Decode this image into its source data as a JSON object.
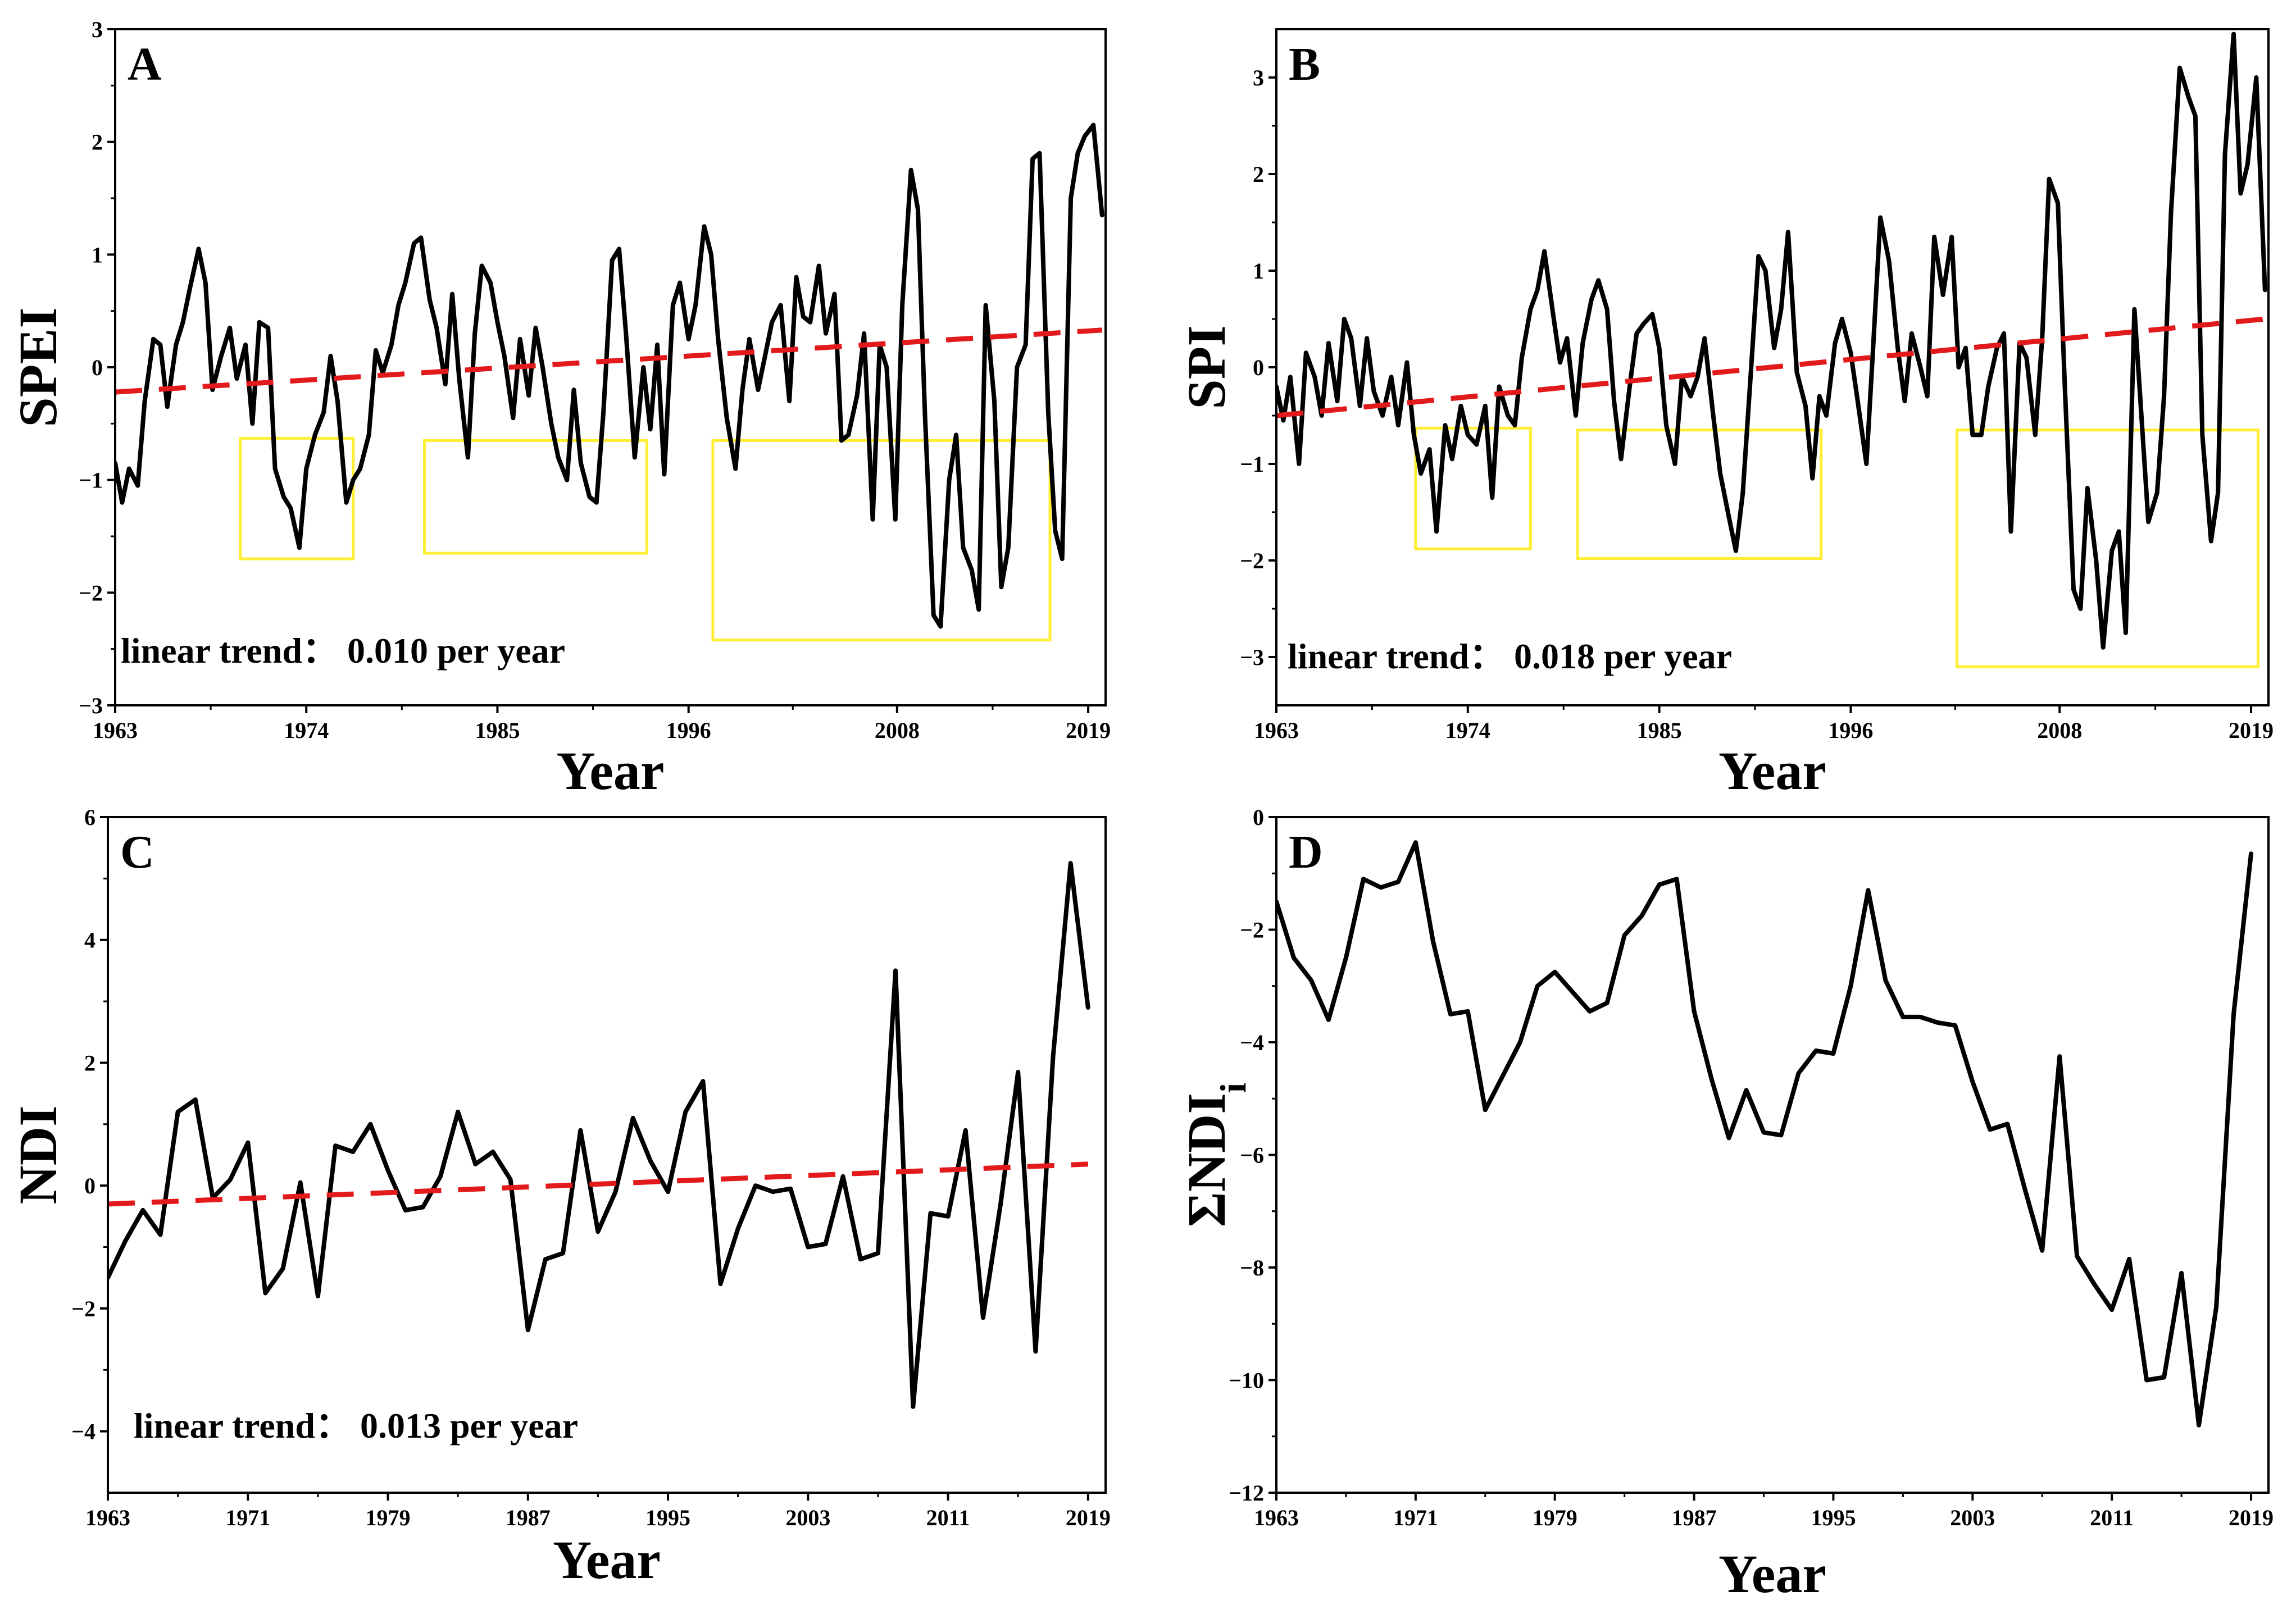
{
  "chart_data": [
    {
      "panel": "A",
      "type": "line",
      "ylabel": "SPEI",
      "xlabel": "Year",
      "ylim": [
        -3,
        3
      ],
      "yticks": [
        -3,
        -2,
        -1,
        0,
        1,
        2,
        3
      ],
      "xlim": [
        1963,
        2020
      ],
      "xticks": [
        1963,
        1974,
        1985,
        1996,
        2008,
        2019
      ],
      "annotation": "linear trend： 0.010 per year",
      "trend": {
        "color": "#e31a1c",
        "x": [
          1963,
          2019.8
        ],
        "y": [
          -0.22,
          0.33
        ]
      },
      "series": [
        {
          "name": "SPEI",
          "color": "#000000",
          "x": [
            1963.0,
            1963.4,
            1963.8,
            1964.3,
            1964.7,
            1965.2,
            1965.6,
            1966.0,
            1966.5,
            1966.9,
            1967.3,
            1967.8,
            1968.2,
            1968.6,
            1969.1,
            1969.6,
            1970.0,
            1970.5,
            1970.9,
            1971.3,
            1971.8,
            1972.2,
            1972.7,
            1973.1,
            1973.6,
            1974.0,
            1974.5,
            1975.0,
            1975.4,
            1975.8,
            1976.3,
            1976.7,
            1977.1,
            1977.6,
            1978.0,
            1978.4,
            1978.9,
            1979.3,
            1979.7,
            1980.2,
            1980.6,
            1981.1,
            1981.5,
            1982.0,
            1982.4,
            1982.8,
            1983.3,
            1983.7,
            1984.1,
            1984.6,
            1985.0,
            1985.4,
            1985.9,
            1986.3,
            1986.8,
            1987.2,
            1987.6,
            1988.1,
            1988.5,
            1989.0,
            1989.4,
            1989.8,
            1990.3,
            1990.7,
            1991.1,
            1991.6,
            1992.0,
            1992.4,
            1992.9,
            1993.4,
            1993.8,
            1994.2,
            1994.6,
            1995.1,
            1995.5,
            1996.0,
            1996.4,
            1996.9,
            1997.3,
            1997.7,
            1998.2,
            1998.7,
            1999.1,
            1999.5,
            2000.0,
            2000.4,
            2000.8,
            2001.3,
            2001.8,
            2002.2,
            2002.6,
            2003.0,
            2003.5,
            2003.9,
            2004.4,
            2004.8,
            2005.2,
            2005.7,
            2006.1,
            2006.6,
            2007.0,
            2007.4,
            2007.9,
            2008.3,
            2008.8,
            2009.2,
            2009.6,
            2010.1,
            2010.5,
            2011.0,
            2011.4,
            2011.8,
            2012.3,
            2012.7,
            2013.1,
            2013.6,
            2014.0,
            2014.4,
            2014.9,
            2015.4,
            2015.8,
            2016.2,
            2016.7,
            2017.1,
            2017.5,
            2018.0,
            2018.4,
            2018.8,
            2019.3,
            2019.8
          ],
          "y": [
            -0.85,
            -1.2,
            -0.9,
            -1.05,
            -0.3,
            0.25,
            0.2,
            -0.35,
            0.2,
            0.4,
            0.7,
            1.05,
            0.75,
            -0.2,
            0.1,
            0.35,
            -0.1,
            0.2,
            -0.5,
            0.4,
            0.35,
            -0.9,
            -1.15,
            -1.25,
            -1.6,
            -0.9,
            -0.6,
            -0.4,
            0.1,
            -0.3,
            -1.2,
            -1.0,
            -0.9,
            -0.6,
            0.15,
            -0.05,
            0.2,
            0.55,
            0.75,
            1.1,
            1.15,
            0.6,
            0.35,
            -0.15,
            0.65,
            -0.1,
            -0.8,
            0.3,
            0.9,
            0.75,
            0.4,
            0.1,
            -0.45,
            0.25,
            -0.25,
            0.35,
            0.0,
            -0.5,
            -0.8,
            -1.0,
            -0.2,
            -0.85,
            -1.15,
            -1.2,
            -0.4,
            0.95,
            1.05,
            0.3,
            -0.8,
            0.0,
            -0.55,
            0.2,
            -0.95,
            0.55,
            0.75,
            0.25,
            0.55,
            1.25,
            1.0,
            0.25,
            -0.45,
            -0.9,
            -0.2,
            0.25,
            -0.2,
            0.1,
            0.4,
            0.55,
            -0.3,
            0.8,
            0.45,
            0.4,
            0.9,
            0.3,
            0.65,
            -0.65,
            -0.6,
            -0.25,
            0.3,
            -1.35,
            0.2,
            0.0,
            -1.35,
            0.55,
            1.75,
            1.4,
            -0.4,
            -2.2,
            -2.3,
            -1.0,
            -0.6,
            -1.6,
            -1.8,
            -2.15,
            0.55,
            -0.3,
            -1.95,
            -1.6,
            0.0,
            0.2,
            1.85,
            1.9,
            -0.4,
            -1.45,
            -1.7,
            1.5,
            1.9,
            2.05,
            2.15,
            1.35
          ]
        }
      ],
      "highlight_boxes": [
        {
          "x": [
            1970.2,
            1976.7
          ],
          "y": [
            -1.7,
            -0.63
          ]
        },
        {
          "x": [
            1980.8,
            1993.6
          ],
          "y": [
            -1.65,
            -0.65
          ]
        },
        {
          "x": [
            1997.4,
            2016.8
          ],
          "y": [
            -2.42,
            -0.65
          ]
        }
      ]
    },
    {
      "panel": "B",
      "type": "line",
      "ylabel": "SPI",
      "xlabel": "Year",
      "ylim": [
        -3.5,
        3.5
      ],
      "yticks": [
        -3,
        -2,
        -1,
        0,
        1,
        2,
        3
      ],
      "xlim": [
        1963,
        2020
      ],
      "xticks": [
        1963,
        1974,
        1985,
        1996,
        2008,
        2019
      ],
      "annotation": "linear trend： 0.018 per year",
      "trend": {
        "color": "#e31a1c",
        "x": [
          1963,
          2019.8
        ],
        "y": [
          -0.5,
          0.5
        ]
      },
      "series": [
        {
          "name": "SPI",
          "color": "#000000",
          "x": [
            1963.0,
            1963.4,
            1963.8,
            1964.3,
            1964.7,
            1965.2,
            1965.6,
            1966.0,
            1966.5,
            1966.9,
            1967.3,
            1967.8,
            1968.2,
            1968.6,
            1969.1,
            1969.6,
            1970.0,
            1970.5,
            1970.9,
            1971.3,
            1971.8,
            1972.2,
            1972.7,
            1973.1,
            1973.6,
            1974.0,
            1974.5,
            1975.0,
            1975.4,
            1975.8,
            1976.3,
            1976.7,
            1977.1,
            1977.6,
            1978.0,
            1978.4,
            1978.9,
            1979.3,
            1979.7,
            1980.2,
            1980.6,
            1981.1,
            1981.5,
            1982.0,
            1982.4,
            1982.8,
            1983.3,
            1983.7,
            1984.1,
            1984.6,
            1985.0,
            1985.4,
            1985.9,
            1986.3,
            1986.8,
            1987.2,
            1987.6,
            1988.1,
            1988.5,
            1989.0,
            1989.4,
            1989.8,
            1990.3,
            1990.7,
            1991.1,
            1991.6,
            1992.0,
            1992.4,
            1992.9,
            1993.4,
            1993.8,
            1994.2,
            1994.6,
            1995.1,
            1995.5,
            1996.0,
            1996.4,
            1996.9,
            1997.3,
            1997.7,
            1998.2,
            1998.7,
            1999.1,
            1999.5,
            2000.0,
            2000.4,
            2000.8,
            2001.3,
            2001.8,
            2002.2,
            2002.6,
            2003.0,
            2003.5,
            2003.9,
            2004.4,
            2004.8,
            2005.2,
            2005.7,
            2006.1,
            2006.6,
            2007.0,
            2007.4,
            2007.9,
            2008.3,
            2008.8,
            2009.2,
            2009.6,
            2010.1,
            2010.5,
            2011.0,
            2011.4,
            2011.8,
            2012.3,
            2012.7,
            2013.1,
            2013.6,
            2014.0,
            2014.4,
            2014.9,
            2015.4,
            2015.8,
            2016.2,
            2016.7,
            2017.1,
            2017.5,
            2018.0,
            2018.4,
            2018.8,
            2019.3,
            2019.8
          ],
          "y": [
            -0.2,
            -0.55,
            -0.1,
            -1.0,
            0.15,
            -0.1,
            -0.5,
            0.25,
            -0.35,
            0.5,
            0.3,
            -0.4,
            0.3,
            -0.25,
            -0.5,
            -0.1,
            -0.6,
            0.05,
            -0.7,
            -1.1,
            -0.85,
            -1.7,
            -0.6,
            -0.95,
            -0.4,
            -0.7,
            -0.8,
            -0.4,
            -1.35,
            -0.2,
            -0.5,
            -0.6,
            0.1,
            0.6,
            0.8,
            1.2,
            0.55,
            0.05,
            0.3,
            -0.5,
            0.25,
            0.7,
            0.9,
            0.6,
            -0.35,
            -0.95,
            -0.2,
            0.35,
            0.45,
            0.55,
            0.2,
            -0.6,
            -1.0,
            -0.1,
            -0.3,
            -0.1,
            0.3,
            -0.5,
            -1.1,
            -1.55,
            -1.9,
            -1.3,
            0.05,
            1.15,
            1.0,
            0.2,
            0.6,
            1.4,
            -0.05,
            -0.4,
            -1.15,
            -0.3,
            -0.5,
            0.25,
            0.5,
            0.15,
            -0.35,
            -1.0,
            0.25,
            1.55,
            1.1,
            0.2,
            -0.35,
            0.35,
            0.0,
            -0.3,
            1.35,
            0.75,
            1.35,
            0.0,
            0.2,
            -0.7,
            -0.7,
            -0.2,
            0.2,
            0.35,
            -1.7,
            0.25,
            0.1,
            -0.7,
            0.3,
            1.95,
            1.7,
            -0.2,
            -2.3,
            -2.5,
            -1.25,
            -2.0,
            -2.9,
            -1.9,
            -1.7,
            -2.75,
            0.6,
            -0.5,
            -1.6,
            -1.3,
            -0.3,
            1.6,
            3.1,
            2.8,
            2.6,
            -0.7,
            -1.8,
            -1.3,
            2.2,
            3.45,
            1.8,
            2.1,
            3.0,
            0.8
          ]
        }
      ],
      "highlight_boxes": [
        {
          "x": [
            1971.0,
            1977.6
          ],
          "y": [
            -1.88,
            -0.63
          ]
        },
        {
          "x": [
            1980.3,
            1994.3
          ],
          "y": [
            -1.98,
            -0.65
          ]
        },
        {
          "x": [
            2002.1,
            2019.4
          ],
          "y": [
            -3.1,
            -0.65
          ]
        }
      ]
    },
    {
      "panel": "C",
      "type": "line",
      "ylabel": "NDI",
      "xlabel": "Year",
      "ylim": [
        -5,
        6
      ],
      "yticks": [
        -4,
        -2,
        0,
        2,
        4,
        6
      ],
      "xlim": [
        1963,
        2020
      ],
      "xticks": [
        1963,
        1971,
        1979,
        1987,
        1995,
        2003,
        2011,
        2019
      ],
      "annotation": "linear trend： 0.013 per year",
      "trend": {
        "color": "#e31a1c",
        "x": [
          1963,
          2019
        ],
        "y": [
          -0.3,
          0.35
        ]
      },
      "series": [
        {
          "name": "NDI",
          "color": "#000000",
          "x": [
            1963,
            1964,
            1965,
            1966,
            1967,
            1968,
            1969,
            1970,
            1971,
            1972,
            1973,
            1974,
            1975,
            1976,
            1977,
            1978,
            1979,
            1980,
            1981,
            1982,
            1983,
            1984,
            1985,
            1986,
            1987,
            1988,
            1989,
            1990,
            1991,
            1992,
            1993,
            1994,
            1995,
            1996,
            1997,
            1998,
            1999,
            2000,
            2001,
            2002,
            2003,
            2004,
            2005,
            2006,
            2007,
            2008,
            2009,
            2010,
            2011,
            2012,
            2013,
            2014,
            2015,
            2016,
            2017,
            2018,
            2019
          ],
          "y": [
            -1.5,
            -0.9,
            -0.4,
            -0.8,
            1.2,
            1.4,
            -0.2,
            0.1,
            0.7,
            -1.75,
            -1.35,
            0.05,
            -1.8,
            0.65,
            0.55,
            1.0,
            0.25,
            -0.4,
            -0.35,
            0.15,
            1.2,
            0.35,
            0.55,
            0.1,
            -2.35,
            -1.2,
            -1.1,
            0.9,
            -0.75,
            -0.1,
            1.1,
            0.4,
            -0.1,
            1.2,
            1.7,
            -1.6,
            -0.7,
            0.0,
            -0.1,
            -0.05,
            -1.0,
            -0.95,
            0.15,
            -1.2,
            -1.1,
            3.5,
            -3.6,
            -0.45,
            -0.5,
            0.9,
            -2.15,
            -0.3,
            1.85,
            -2.7,
            2.1,
            5.25,
            2.9
          ]
        }
      ]
    },
    {
      "panel": "D",
      "type": "line",
      "ylabel": "ΣNDIi",
      "ylabel_main": "ΣNDI",
      "ylabel_sub": "i",
      "xlabel": "Year",
      "ylim": [
        -12,
        0
      ],
      "yticks": [
        -12,
        -10,
        -8,
        -6,
        -4,
        -2,
        0
      ],
      "xlim": [
        1963,
        2020
      ],
      "xticks": [
        1963,
        1971,
        1979,
        1987,
        1995,
        2003,
        2011,
        2019
      ],
      "series": [
        {
          "name": "ΣNDIi",
          "color": "#000000",
          "x": [
            1963,
            1964,
            1965,
            1966,
            1967,
            1968,
            1969,
            1970,
            1971,
            1972,
            1973,
            1974,
            1975,
            1976,
            1977,
            1978,
            1979,
            1980,
            1981,
            1982,
            1983,
            1984,
            1985,
            1986,
            1987,
            1988,
            1989,
            1990,
            1991,
            1992,
            1993,
            1994,
            1995,
            1996,
            1997,
            1998,
            1999,
            2000,
            2001,
            2002,
            2003,
            2004,
            2005,
            2006,
            2007,
            2008,
            2009,
            2010,
            2011,
            2012,
            2013,
            2014,
            2015,
            2016,
            2017,
            2018,
            2019
          ],
          "y": [
            -1.5,
            -2.5,
            -2.9,
            -3.6,
            -2.5,
            -1.1,
            -1.25,
            -1.15,
            -0.45,
            -2.2,
            -3.5,
            -3.45,
            -5.2,
            -4.6,
            -4.0,
            -3.0,
            -2.75,
            -3.1,
            -3.45,
            -3.3,
            -2.1,
            -1.75,
            -1.2,
            -1.1,
            -3.45,
            -4.65,
            -5.7,
            -4.85,
            -5.6,
            -5.65,
            -4.55,
            -4.15,
            -4.2,
            -3.0,
            -1.3,
            -2.9,
            -3.55,
            -3.55,
            -3.65,
            -3.7,
            -4.7,
            -5.55,
            -5.45,
            -6.6,
            -7.7,
            -4.25,
            -7.8,
            -8.3,
            -8.75,
            -7.85,
            -10.0,
            -9.95,
            -8.1,
            -10.8,
            -8.7,
            -3.5,
            -0.65
          ]
        }
      ]
    }
  ]
}
